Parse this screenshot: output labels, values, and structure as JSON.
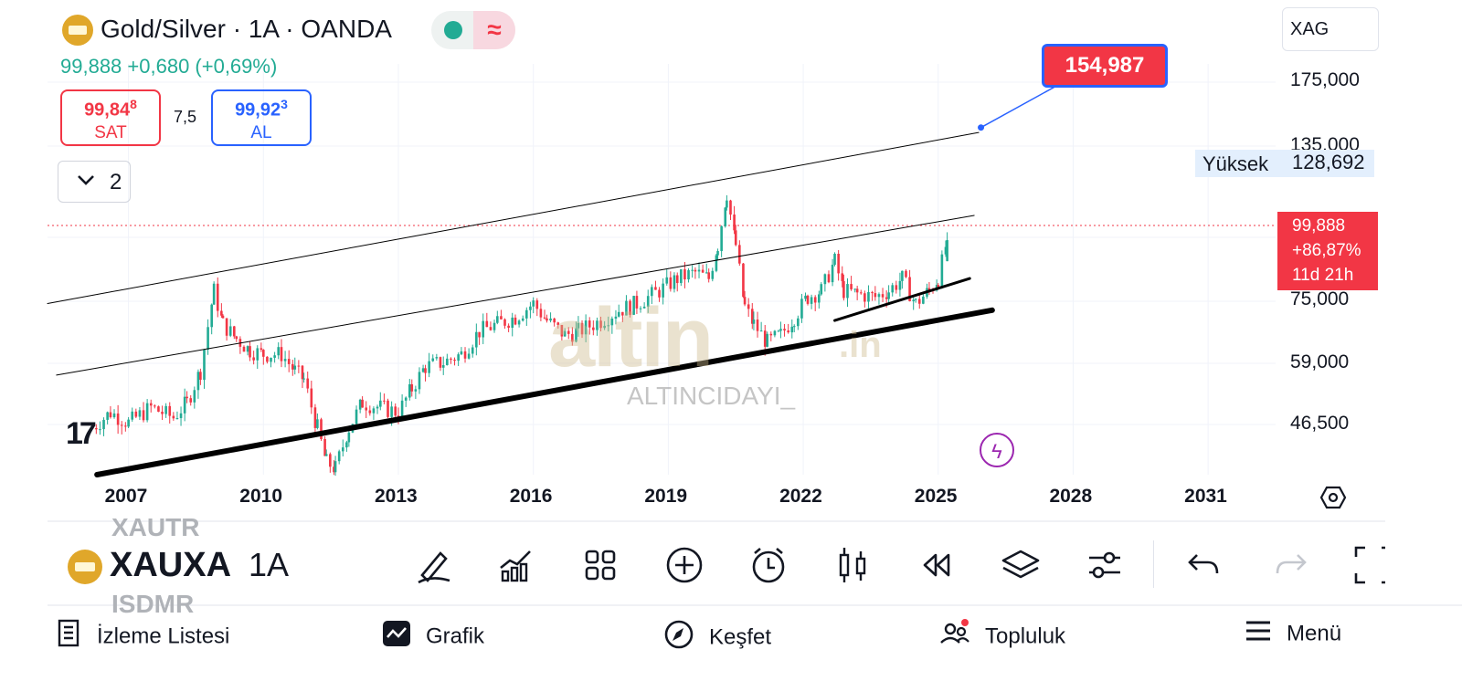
{
  "header": {
    "title": "Gold/Silver · 1A · OANDA",
    "price_line": "99,888  +0,680 (+0,69%)",
    "sell": {
      "price_main": "99,84",
      "price_sup": "8",
      "label": "SAT"
    },
    "buy": {
      "price_main": "99,92",
      "price_sup": "3",
      "label": "AL"
    },
    "spread": "7,5",
    "indicator_count": "2",
    "symbol_box": "XAG"
  },
  "price_axis": {
    "ticks": [
      "175,000",
      "135,000",
      "75,000",
      "59,000",
      "46,500"
    ],
    "high_label": "Yüksek",
    "high_value": "128,692",
    "current": [
      "99,888",
      "+86,87%",
      "11d 21h"
    ]
  },
  "target_label": "154,987",
  "time_axis": [
    "2007",
    "2010",
    "2013",
    "2016",
    "2019",
    "2022",
    "2025",
    "2028",
    "2031"
  ],
  "watermark": {
    "brand": "altin",
    "tld": ".in",
    "user": "ALTINCIDAYI_"
  },
  "chart_logo": "17",
  "symbol_bar": {
    "ghost_above": "XAUTR",
    "symbol": "XAUXA",
    "ghost_below": "ISDMR",
    "timeframe": "1A"
  },
  "toolbar_icons": [
    "draw-icon",
    "indicators-icon",
    "layouts-icon",
    "add-icon",
    "alert-icon",
    "candles-icon",
    "replay-icon",
    "layers-icon",
    "settings-icon",
    "undo-icon",
    "redo-icon",
    "fullscreen-icon"
  ],
  "bottom_nav": [
    {
      "label": "İzleme Listesi",
      "icon": "list-icon"
    },
    {
      "label": "Grafik",
      "icon": "chart-icon"
    },
    {
      "label": "Keşfet",
      "icon": "compass-icon"
    },
    {
      "label": "Topluluk",
      "icon": "community-icon"
    },
    {
      "label": "Menü",
      "icon": "menu-icon"
    }
  ],
  "colors": {
    "up": "#22ab94",
    "down": "#f23645",
    "accent": "#2962ff",
    "gold": "#e0a72a"
  },
  "chart_data": {
    "type": "candlestick",
    "title": "Gold/Silver · 1A · OANDA",
    "y_scale": "log",
    "ylim": [
      40000,
      185000
    ],
    "xlim": [
      2005.2,
      2032.5
    ],
    "series": [
      {
        "name": "XAUXAG",
        "points": [
          [
            2006.2,
            48000
          ],
          [
            2006.6,
            51000
          ],
          [
            2007.0,
            49000
          ],
          [
            2007.5,
            52000
          ],
          [
            2008.0,
            50000
          ],
          [
            2008.3,
            53000
          ],
          [
            2008.6,
            60000
          ],
          [
            2008.9,
            82000
          ],
          [
            2009.1,
            72000
          ],
          [
            2009.4,
            68000
          ],
          [
            2009.7,
            65000
          ],
          [
            2010.0,
            64000
          ],
          [
            2010.4,
            64000
          ],
          [
            2010.7,
            60000
          ],
          [
            2010.9,
            58000
          ],
          [
            2011.2,
            48000
          ],
          [
            2011.4,
            42000
          ],
          [
            2011.6,
            41000
          ],
          [
            2011.9,
            48000
          ],
          [
            2012.2,
            53000
          ],
          [
            2012.6,
            52000
          ],
          [
            2013.0,
            51000
          ],
          [
            2013.3,
            56000
          ],
          [
            2013.6,
            61000
          ],
          [
            2014.0,
            62000
          ],
          [
            2014.4,
            64000
          ],
          [
            2014.8,
            70000
          ],
          [
            2015.2,
            72000
          ],
          [
            2015.6,
            74000
          ],
          [
            2016.0,
            78000
          ],
          [
            2016.3,
            73000
          ],
          [
            2016.7,
            69000
          ],
          [
            2017.0,
            70000
          ],
          [
            2017.5,
            73000
          ],
          [
            2017.9,
            76000
          ],
          [
            2018.3,
            78000
          ],
          [
            2018.8,
            82000
          ],
          [
            2019.2,
            86000
          ],
          [
            2019.6,
            88000
          ],
          [
            2019.9,
            86000
          ],
          [
            2020.1,
            98000
          ],
          [
            2020.3,
            120000
          ],
          [
            2020.5,
            98000
          ],
          [
            2020.7,
            77000
          ],
          [
            2020.9,
            72000
          ],
          [
            2021.2,
            67000
          ],
          [
            2021.5,
            69000
          ],
          [
            2021.8,
            74000
          ],
          [
            2022.1,
            80000
          ],
          [
            2022.4,
            82000
          ],
          [
            2022.7,
            92000
          ],
          [
            2022.9,
            82000
          ],
          [
            2023.2,
            81000
          ],
          [
            2023.6,
            80000
          ],
          [
            2023.9,
            82000
          ],
          [
            2024.2,
            86000
          ],
          [
            2024.5,
            78000
          ],
          [
            2024.8,
            82000
          ],
          [
            2025.0,
            86000
          ],
          [
            2025.2,
            99888
          ]
        ]
      }
    ],
    "trendlines": [
      {
        "from": [
          2005.2,
          78000
        ],
        "to": [
          2025.9,
          152000
        ],
        "width": 1
      },
      {
        "from": [
          2005.4,
          59000
        ],
        "to": [
          2025.8,
          110000
        ],
        "width": 1
      },
      {
        "from": [
          2006.3,
          40000
        ],
        "to": [
          2026.2,
          76000
        ],
        "width": 6
      },
      {
        "from": [
          2022.7,
          73000
        ],
        "to": [
          2025.7,
          86000
        ],
        "width": 3
      }
    ],
    "target": {
      "x": 2025.95,
      "y": 154987
    },
    "current_price": 99888,
    "high": 128692
  }
}
